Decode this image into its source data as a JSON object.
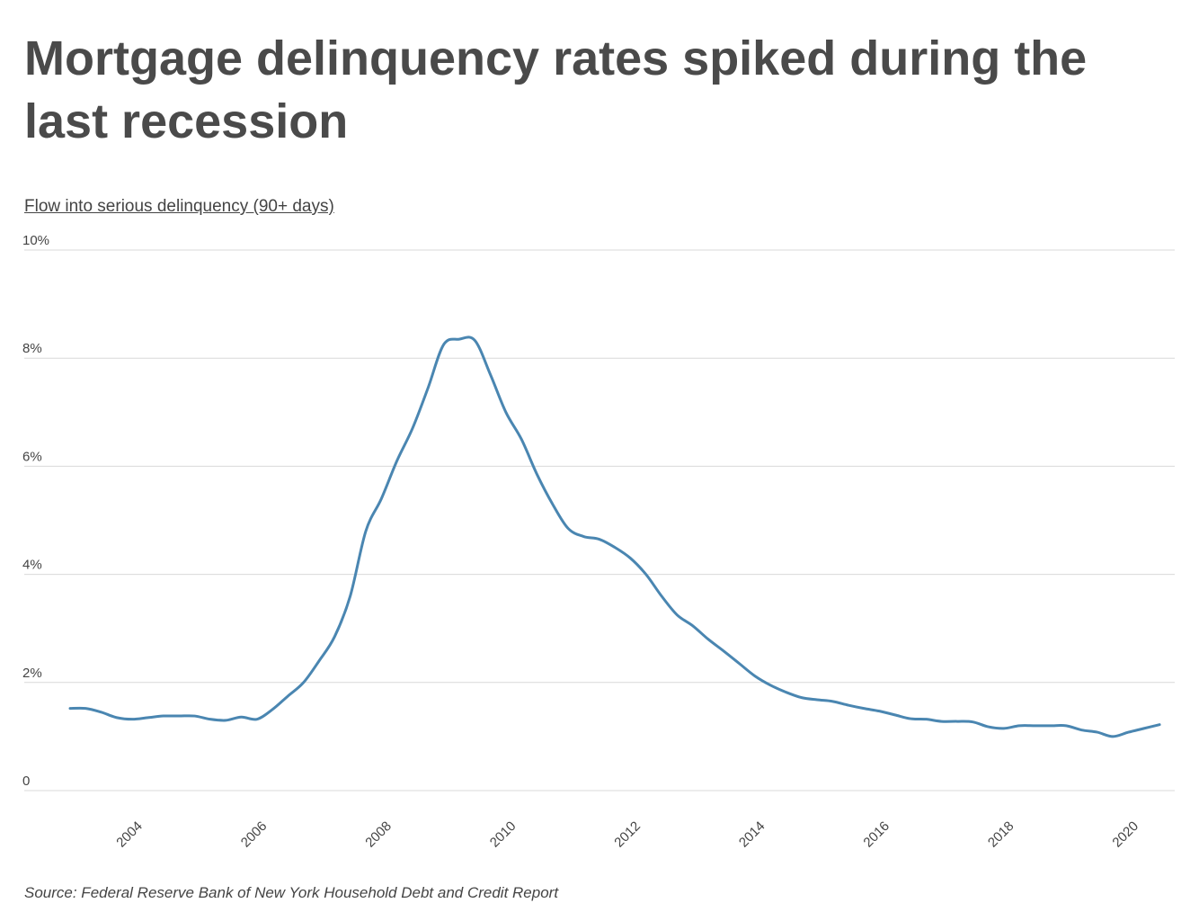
{
  "title": "Mortgage delinquency rates spiked during the last recession",
  "source": "Source: Federal Reserve Bank of New York Household Debt and Credit Report",
  "colors": {
    "line": "#4a86b1",
    "grid": "#d9d9d9",
    "text": "#444444"
  },
  "chart_data": {
    "type": "line",
    "title": "Mortgage delinquency rates spiked during the last recession",
    "ylabel": "Flow into serious delinquency (90+ days)",
    "xlabel": "",
    "xlim": [
      2003.0,
      2020.6
    ],
    "ylim": [
      0,
      10
    ],
    "y_ticks": [
      {
        "value": 10,
        "label": "10%"
      },
      {
        "value": 8,
        "label": "8%"
      },
      {
        "value": 6,
        "label": "6%"
      },
      {
        "value": 4,
        "label": "4%"
      },
      {
        "value": 2,
        "label": "2%"
      },
      {
        "value": 0,
        "label": "0"
      }
    ],
    "x_ticks": [
      {
        "value": 2004,
        "label": "2004"
      },
      {
        "value": 2006,
        "label": "2006"
      },
      {
        "value": 2008,
        "label": "2008"
      },
      {
        "value": 2010,
        "label": "2010"
      },
      {
        "value": 2012,
        "label": "2012"
      },
      {
        "value": 2014,
        "label": "2014"
      },
      {
        "value": 2016,
        "label": "2016"
      },
      {
        "value": 2018,
        "label": "2018"
      },
      {
        "value": 2020,
        "label": "2020"
      }
    ],
    "grid": true,
    "series": [
      {
        "name": "Flow into serious delinquency (90+ days)",
        "x": [
          2003.0,
          2003.25,
          2003.5,
          2003.75,
          2004.0,
          2004.25,
          2004.5,
          2004.75,
          2005.0,
          2005.25,
          2005.5,
          2005.75,
          2006.0,
          2006.25,
          2006.5,
          2006.75,
          2007.0,
          2007.25,
          2007.5,
          2007.75,
          2008.0,
          2008.25,
          2008.5,
          2008.75,
          2009.0,
          2009.25,
          2009.5,
          2009.75,
          2010.0,
          2010.25,
          2010.5,
          2010.75,
          2011.0,
          2011.25,
          2011.5,
          2011.75,
          2012.0,
          2012.25,
          2012.5,
          2012.75,
          2013.0,
          2013.25,
          2013.5,
          2013.75,
          2014.0,
          2014.25,
          2014.5,
          2014.75,
          2015.0,
          2015.25,
          2015.5,
          2015.75,
          2016.0,
          2016.25,
          2016.5,
          2016.75,
          2017.0,
          2017.25,
          2017.5,
          2017.75,
          2018.0,
          2018.25,
          2018.5,
          2018.75,
          2019.0,
          2019.25,
          2019.5,
          2019.75,
          2020.0,
          2020.25,
          2020.5
        ],
        "values": [
          1.52,
          1.52,
          1.45,
          1.35,
          1.32,
          1.35,
          1.38,
          1.38,
          1.38,
          1.32,
          1.3,
          1.36,
          1.32,
          1.5,
          1.75,
          2.0,
          2.4,
          2.85,
          3.6,
          4.8,
          5.4,
          6.1,
          6.7,
          7.45,
          8.25,
          8.35,
          8.33,
          7.7,
          7.0,
          6.5,
          5.85,
          5.3,
          4.85,
          4.7,
          4.65,
          4.5,
          4.3,
          4.0,
          3.6,
          3.25,
          3.05,
          2.8,
          2.58,
          2.35,
          2.12,
          1.95,
          1.82,
          1.72,
          1.68,
          1.65,
          1.58,
          1.52,
          1.47,
          1.4,
          1.33,
          1.32,
          1.28,
          1.28,
          1.27,
          1.18,
          1.15,
          1.2,
          1.2,
          1.2,
          1.2,
          1.12,
          1.08,
          1.0,
          1.08,
          1.15,
          1.22
        ]
      }
    ]
  }
}
